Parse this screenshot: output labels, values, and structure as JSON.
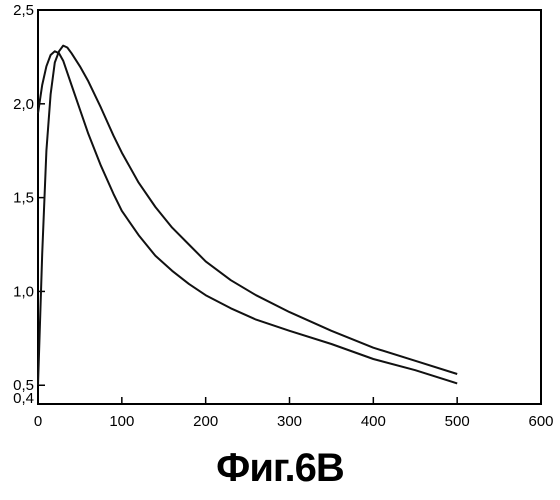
{
  "chart_data": {
    "type": "line",
    "title": "",
    "xlabel": "",
    "ylabel": "",
    "xlim": [
      0,
      600
    ],
    "ylim": [
      0.4,
      2.5
    ],
    "x_ticks": [
      0,
      100,
      200,
      300,
      400,
      500,
      600
    ],
    "y_ticks": [
      0.4,
      0.5,
      1.0,
      1.5,
      2.0,
      2.5
    ],
    "x_tick_labels": [
      "0",
      "100",
      "200",
      "300",
      "400",
      "500",
      "600"
    ],
    "y_tick_labels": [
      "0,4",
      "0,5",
      "1,0",
      "1,5",
      "2,0",
      "2,5"
    ],
    "grid": false,
    "legend": "none",
    "line_color": "#111111",
    "series": [
      {
        "x": [
          0,
          5,
          10,
          15,
          20,
          25,
          30,
          40,
          50,
          60,
          75,
          90,
          100,
          120,
          140,
          160,
          180,
          200,
          230,
          260,
          300,
          350,
          400,
          450,
          500
        ],
        "y": [
          1.95,
          2.1,
          2.2,
          2.26,
          2.28,
          2.27,
          2.23,
          2.1,
          1.97,
          1.84,
          1.67,
          1.52,
          1.43,
          1.3,
          1.19,
          1.11,
          1.04,
          0.98,
          0.91,
          0.85,
          0.79,
          0.72,
          0.64,
          0.58,
          0.51
        ]
      },
      {
        "x": [
          0,
          5,
          10,
          15,
          20,
          25,
          30,
          35,
          40,
          50,
          60,
          75,
          90,
          100,
          120,
          140,
          160,
          180,
          200,
          230,
          260,
          300,
          350,
          400,
          450,
          500
        ],
        "y": [
          0.5,
          1.2,
          1.75,
          2.05,
          2.22,
          2.28,
          2.31,
          2.3,
          2.27,
          2.2,
          2.12,
          1.98,
          1.83,
          1.74,
          1.58,
          1.45,
          1.34,
          1.25,
          1.16,
          1.06,
          0.98,
          0.89,
          0.79,
          0.7,
          0.63,
          0.56
        ]
      }
    ]
  },
  "caption": "Фиг.6В"
}
